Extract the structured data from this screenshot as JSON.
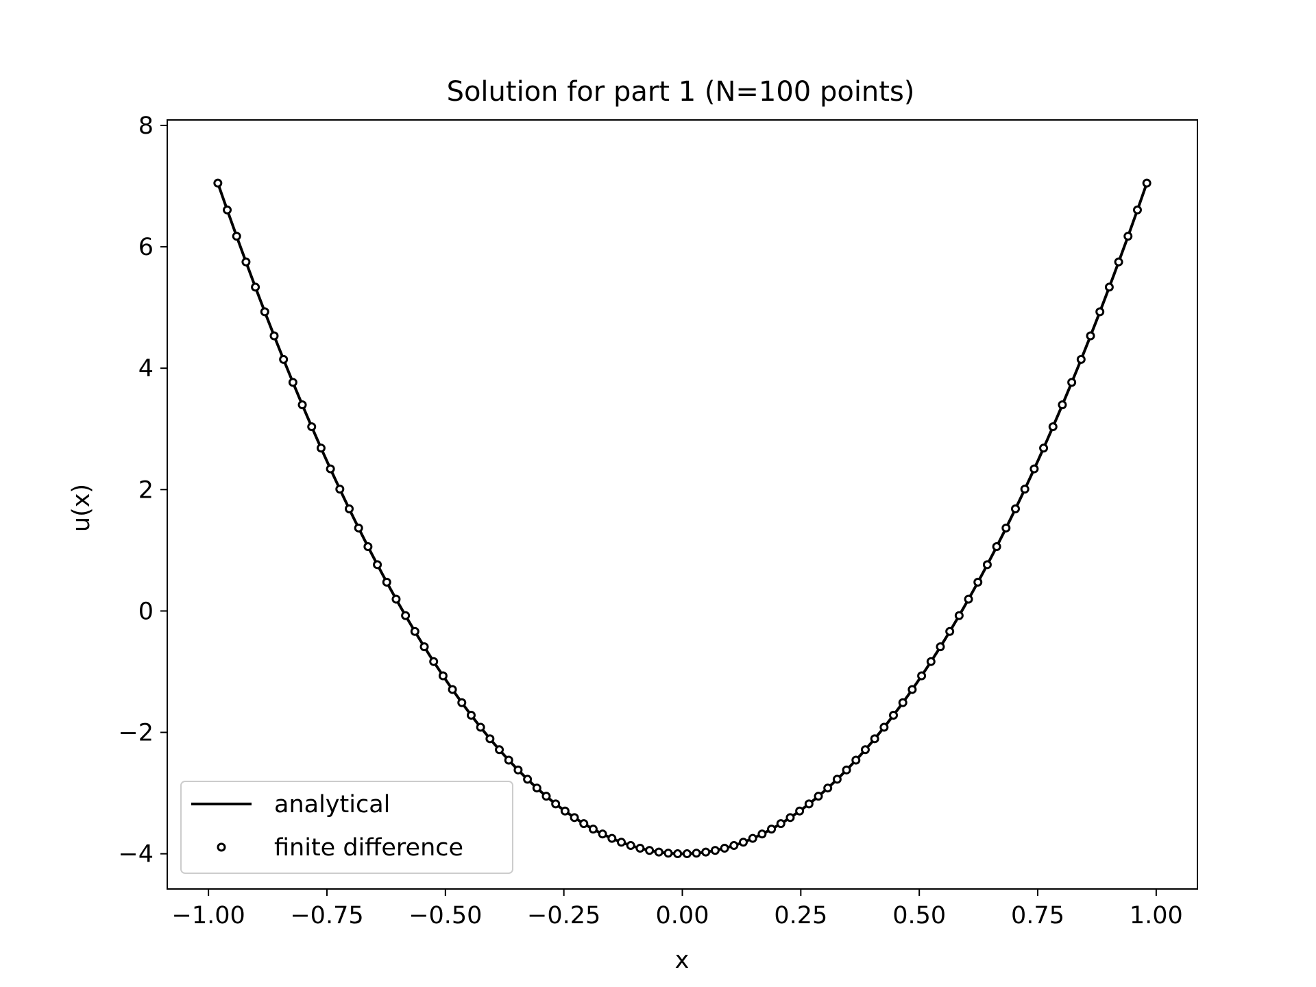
{
  "chart_data": {
    "type": "line",
    "title": "Solution for part 1 (N=100 points)",
    "xlabel": "x",
    "ylabel": "u(x)",
    "xlim": [
      -1.087,
      1.087
    ],
    "ylim": [
      -4.58,
      8.09
    ],
    "xticks": [
      -1.0,
      -0.75,
      -0.5,
      -0.25,
      0.0,
      0.25,
      0.5,
      0.75,
      1.0
    ],
    "xtick_labels": [
      "−1.00",
      "−0.75",
      "−0.50",
      "−0.25",
      "0.00",
      "0.25",
      "0.50",
      "0.75",
      "1.00"
    ],
    "yticks": [
      -4,
      -2,
      0,
      2,
      4,
      6,
      8
    ],
    "ytick_labels": [
      "−4",
      "−2",
      "0",
      "2",
      "4",
      "6",
      "8"
    ],
    "grid": false,
    "legend_position": "lower-left",
    "line_color": "#000000",
    "series": [
      {
        "name": "analytical",
        "style": "solid-line",
        "formula": "u(x) = 11.5*x^2 - 4",
        "x_range": [
          -0.9802,
          0.9802
        ]
      },
      {
        "name": "finite difference",
        "style": "open-circle-markers",
        "n_points": 100,
        "x_range": [
          -0.9802,
          0.9802
        ],
        "values_follow": "analytical"
      }
    ]
  }
}
